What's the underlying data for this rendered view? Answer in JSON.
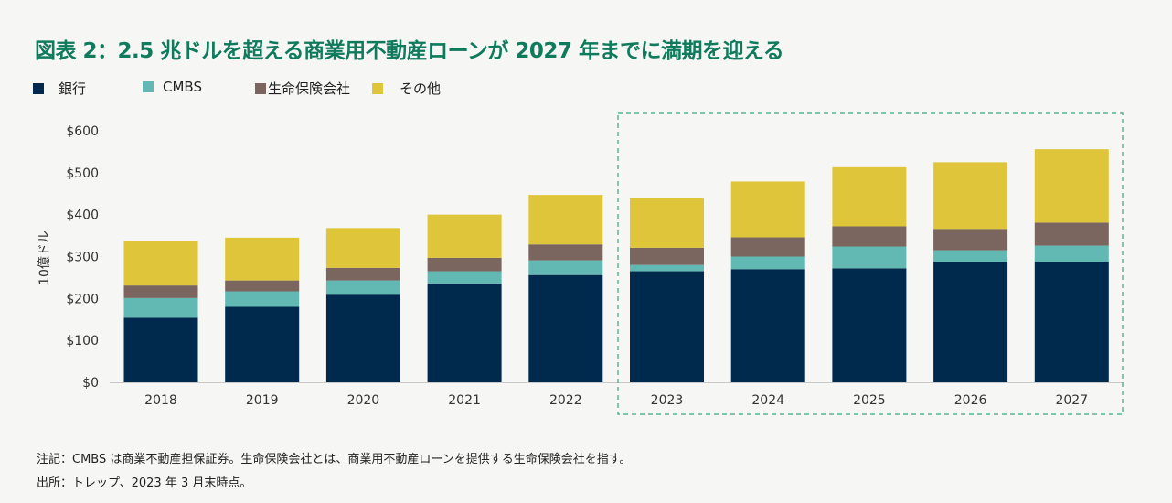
{
  "title": "図表 2：2.5 兆ドルを超える商業用不動産ローンが 2027 年までに満期を迎える",
  "chart_data": {
    "type": "bar",
    "stacked": true,
    "title": "図表 2：2.5 兆ドルを超える商業用不動産ローンが 2027 年までに満期を迎える",
    "xlabel": "",
    "ylabel": "10億ドル",
    "ylim": [
      0,
      600
    ],
    "yticks": [
      "$0",
      "$100",
      "$200",
      "$300",
      "$400",
      "$500",
      "$600"
    ],
    "ytick_values": [
      0,
      100,
      200,
      300,
      400,
      500,
      600
    ],
    "grid": false,
    "legend_position": "top-left",
    "categories": [
      "2018",
      "2019",
      "2020",
      "2021",
      "2022",
      "2023",
      "2024",
      "2025",
      "2026",
      "2027"
    ],
    "highlight_range": [
      "2023",
      "2027"
    ],
    "series": [
      {
        "name": "銀行",
        "color": "#002a4d",
        "values": [
          154,
          180,
          209,
          236,
          256,
          265,
          270,
          272,
          287,
          287
        ]
      },
      {
        "name": "CMBS",
        "color": "#62b8b2",
        "values": [
          47,
          37,
          34,
          29,
          35,
          15,
          30,
          52,
          28,
          39
        ]
      },
      {
        "name": "生命保険会社",
        "color": "#7a665e",
        "values": [
          30,
          26,
          30,
          32,
          38,
          41,
          46,
          48,
          51,
          55
        ]
      },
      {
        "name": "その他",
        "color": "#dfc53a",
        "values": [
          106,
          102,
          95,
          103,
          118,
          119,
          133,
          141,
          159,
          175
        ]
      }
    ]
  },
  "notes": {
    "note": "注記：CMBS は商業不動産担保証券。生命保険会社とは、商業用不動産ローンを提供する生命保険会社を指す。",
    "source": "出所：トレップ、2023 年 3 月末時点。"
  }
}
